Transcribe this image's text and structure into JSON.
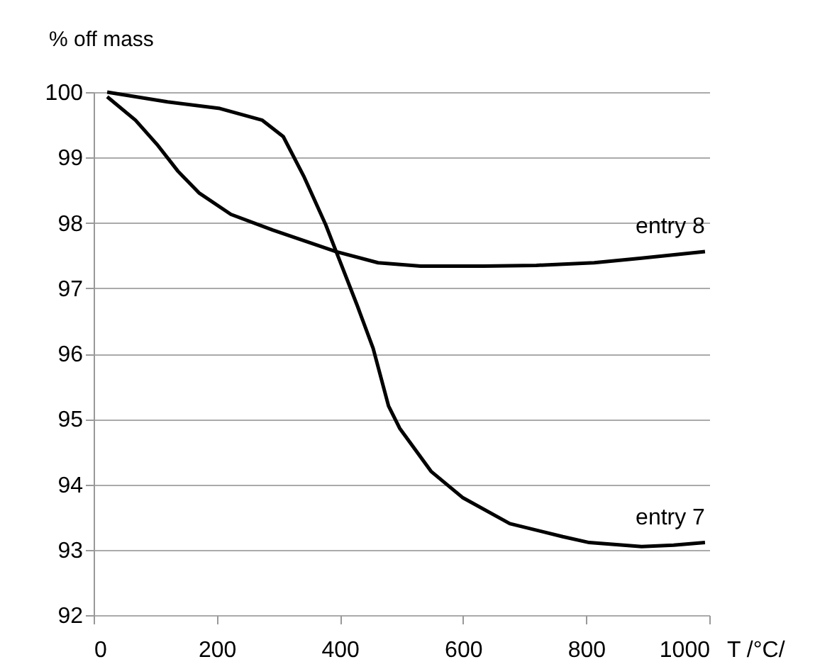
{
  "chart_data": {
    "type": "line",
    "xlabel": "T /°C/",
    "ylabel": "% off mass",
    "xlim": [
      0,
      1000
    ],
    "xticks": [
      0,
      200,
      400,
      600,
      800,
      1000
    ],
    "ylim": [
      92,
      100
    ],
    "yticks": [
      92,
      93,
      94,
      95,
      96,
      97,
      98,
      99,
      100
    ],
    "grid": "y",
    "marker": "none",
    "line_style": "solid",
    "series": [
      {
        "name": "entry 8",
        "color": "#000000",
        "x": [
          22,
          68,
          103,
          137,
          171,
          223,
          291,
          394,
          462,
          531,
          634,
          719,
          813,
          890,
          993
        ],
        "values": [
          99.93,
          99.57,
          99.2,
          98.79,
          98.46,
          98.13,
          97.89,
          97.56,
          97.39,
          97.34,
          97.34,
          97.35,
          97.39,
          97.46,
          97.56
        ]
      },
      {
        "name": "entry 7",
        "color": "#000000",
        "x": [
          22,
          120,
          205,
          274,
          308,
          342,
          377,
          394,
          428,
          454,
          479,
          497,
          548,
          599,
          676,
          762,
          805,
          890,
          942,
          993
        ],
        "values": [
          100,
          99.85,
          99.75,
          99.57,
          99.32,
          98.7,
          97.97,
          97.56,
          96.74,
          96.08,
          95.2,
          94.86,
          94.2,
          93.8,
          93.4,
          93.2,
          93.11,
          93.05,
          93.07,
          93.11
        ]
      }
    ]
  }
}
